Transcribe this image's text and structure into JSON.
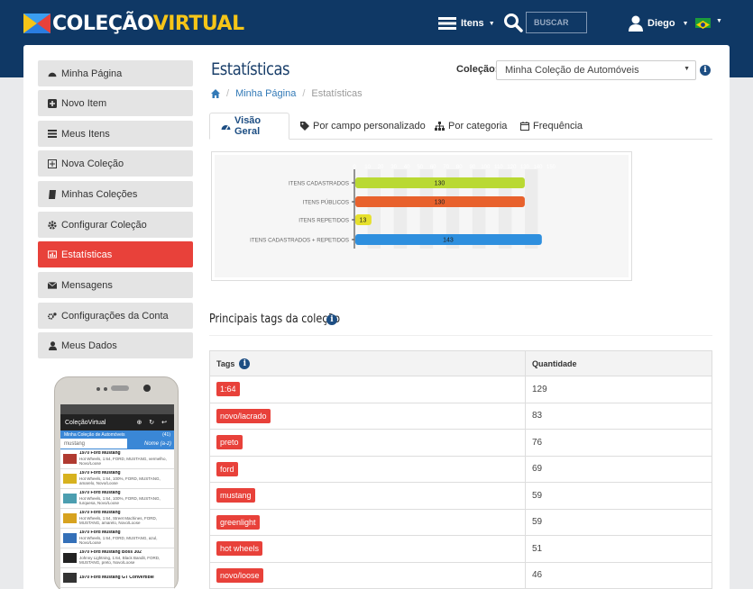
{
  "header": {
    "logo_a": "COLEÇÃO",
    "logo_b": "VIRTUAL",
    "items_label": "Itens",
    "search_placeholder": "BUSCAR",
    "user_name": "Diego"
  },
  "sidebar": {
    "items": [
      {
        "label": "Minha Página",
        "icon": "dashboard-icon"
      },
      {
        "label": "Novo Item",
        "icon": "plus-square-icon"
      },
      {
        "label": "Meus Itens",
        "icon": "list-icon"
      },
      {
        "label": "Nova Coleção",
        "icon": "plus-box-icon"
      },
      {
        "label": "Minhas Coleções",
        "icon": "book-icon"
      },
      {
        "label": "Configurar Coleção",
        "icon": "gear-icon"
      },
      {
        "label": "Estatísticas",
        "icon": "chart-icon",
        "active": true
      },
      {
        "label": "Mensagens",
        "icon": "envelope-icon"
      },
      {
        "label": "Configurações da Conta",
        "icon": "cogs-icon"
      },
      {
        "label": "Meus Dados",
        "icon": "user-icon"
      }
    ]
  },
  "phone": {
    "app_title": "ColeçãoVirtual",
    "collection": "Minha Coleção de Automóveis",
    "count": "(41)",
    "search_value": "mustang",
    "order_label": "Nome (a-z)",
    "rows": [
      {
        "title": "1970 Ford Mustang",
        "desc": "Hot Wheels, 1:64, FORD, MUSTANG, vermelho, Novo/Loose"
      },
      {
        "title": "1970 Ford Mustang",
        "desc": "Hot Wheels, 1:64, 100%, FORD, MUSTANG, amarelo, Novo/Loose"
      },
      {
        "title": "1970 Ford Mustang",
        "desc": "Hot Wheels, 1:64, 100%, FORD, MUSTANG, turquesa, Novo/Loose"
      },
      {
        "title": "1970 Ford Mustang",
        "desc": "Hot Wheels, 1:64, Street Machines, FORD, MUSTANG, amarelo, Novo/Loose"
      },
      {
        "title": "1970 Ford Mustang",
        "desc": "Hot Wheels, 1:64, FORD, MUSTANG, azul, Novo/Loose"
      },
      {
        "title": "1970 Ford Mustang Boss 302",
        "desc": "Johnny Lightning, 1:64, Black Bandit, FORD, MUSTANG, preto, Novo/Loose"
      },
      {
        "title": "1970 Ford Mustang GT Convertible",
        "desc": ""
      }
    ]
  },
  "main": {
    "title": "Estatísticas",
    "collection_label": "Coleção:",
    "collection_value": "Minha Coleção de Automóveis",
    "breadcrumb": {
      "home_icon": "home-icon",
      "parent": "Minha Página",
      "current": "Estatísticas",
      "sep": "/"
    },
    "tabs": [
      {
        "label": "Visão Geral",
        "icon": "dashboard-icon",
        "active": true
      },
      {
        "label": "Por campo personalizado",
        "icon": "tag-icon"
      },
      {
        "label": "Por categoria",
        "icon": "sitemap-icon"
      },
      {
        "label": "Frequência",
        "icon": "calendar-icon"
      }
    ],
    "tags_title": "Principais tags da coleção",
    "table": {
      "headers": {
        "tags": "Tags",
        "qty": "Quantidade"
      },
      "rows": [
        {
          "tag": "1:64",
          "qty": "129"
        },
        {
          "tag": "novo/lacrado",
          "qty": "83"
        },
        {
          "tag": "preto",
          "qty": "76"
        },
        {
          "tag": "ford",
          "qty": "69"
        },
        {
          "tag": "mustang",
          "qty": "59"
        },
        {
          "tag": "greenlight",
          "qty": "59"
        },
        {
          "tag": "hot wheels",
          "qty": "51"
        },
        {
          "tag": "novo/loose",
          "qty": "46"
        }
      ]
    }
  },
  "chart_data": {
    "type": "bar",
    "orientation": "horizontal",
    "categories": [
      "ITENS CADASTRADOS",
      "ITENS PÚBLICOS",
      "ITENS REPETIDOS",
      "ITENS CADASTRADOS + REPETIDOS"
    ],
    "values": [
      130,
      130,
      13,
      143
    ],
    "value_labels": [
      "130",
      "130",
      "13",
      "143"
    ],
    "colors": [
      "#b9d933",
      "#e8612c",
      "#e6e02c",
      "#2e8fde"
    ],
    "x_ticks": [
      "0",
      "10",
      "20",
      "30",
      "40",
      "50",
      "60",
      "70",
      "80",
      "90",
      "100",
      "110",
      "120",
      "130",
      "140",
      "150"
    ],
    "xlim": [
      0,
      150
    ],
    "grid": true
  }
}
